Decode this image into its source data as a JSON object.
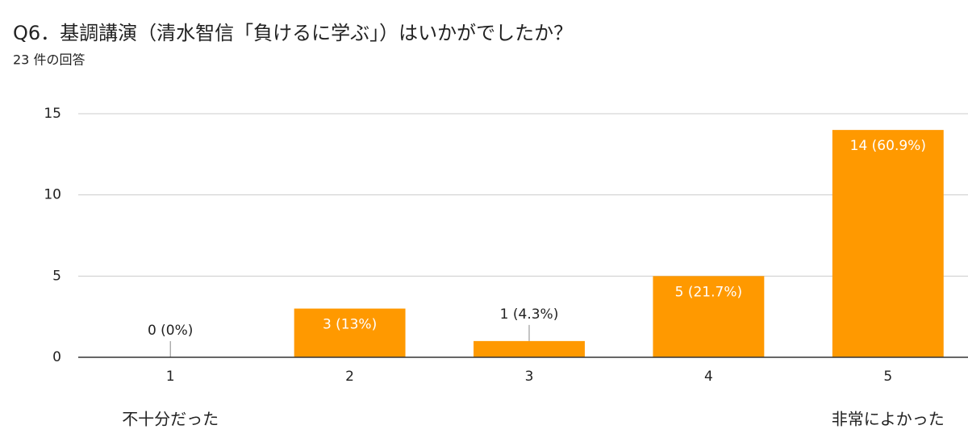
{
  "chart_data": {
    "type": "bar",
    "title": "Q6．基調講演（清水智信「負けるに学ぶ」）はいかがでしたか？",
    "subtitle": "23 件の回答",
    "categories": [
      "1",
      "2",
      "3",
      "4",
      "5"
    ],
    "values": [
      0,
      3,
      1,
      5,
      14
    ],
    "value_labels": [
      "0 (0%)",
      "3 (13%)",
      "1 (4.3%)",
      "5 (21.7%)",
      "14 (60.9%)"
    ],
    "color": "#ff9900",
    "ylim": [
      0,
      15
    ],
    "yticks": [
      0,
      5,
      10,
      15
    ],
    "grid": true,
    "annotations": [
      "不十分だった",
      "非常によかった"
    ]
  }
}
